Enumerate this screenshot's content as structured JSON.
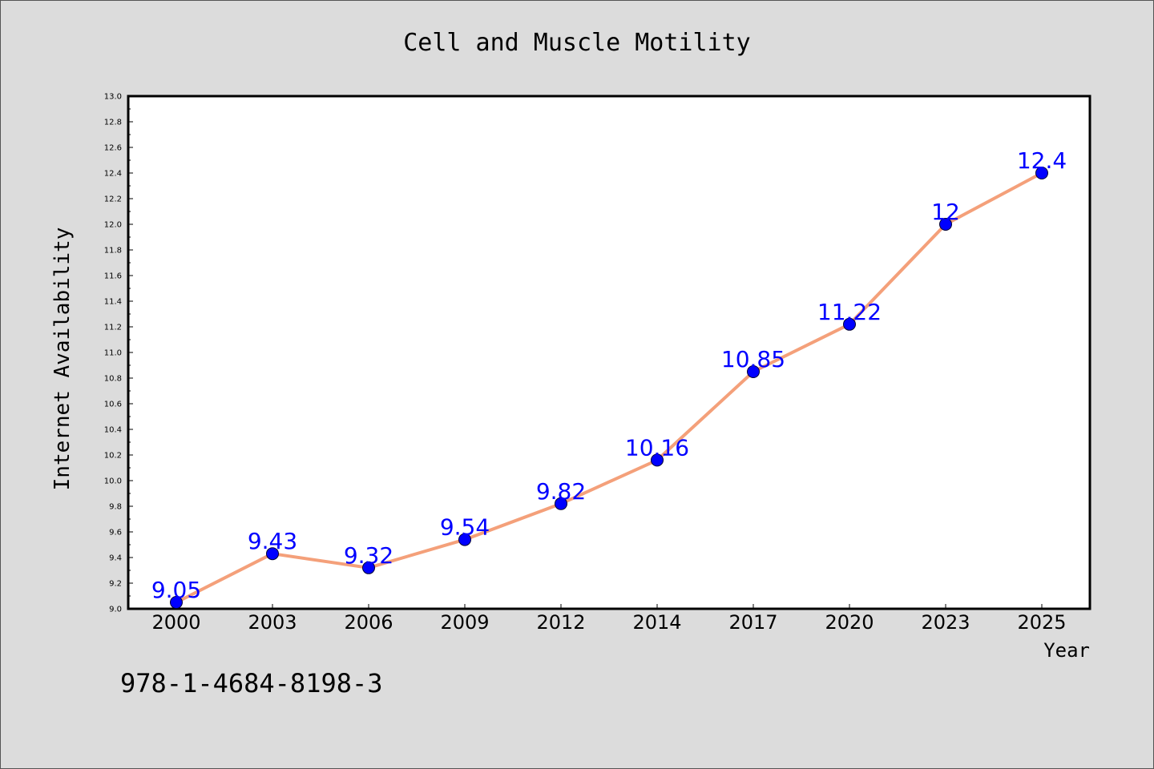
{
  "chart_data": {
    "type": "line",
    "title": "Cell and Muscle Motility",
    "xlabel": "Year",
    "ylabel": "Internet Availability",
    "categories": [
      "2000",
      "2003",
      "2006",
      "2009",
      "2012",
      "2014",
      "2017",
      "2020",
      "2023",
      "2025"
    ],
    "series": [
      {
        "values": [
          9.05,
          9.43,
          9.32,
          9.54,
          9.82,
          10.16,
          10.85,
          11.22,
          12,
          12.4
        ],
        "labels": [
          "9.05",
          "9.43",
          "9.32",
          "9.54",
          "9.82",
          "10.16",
          "10.85",
          "11.22",
          "12",
          "12.4"
        ]
      }
    ],
    "ylim": [
      9.0,
      13.0
    ],
    "yticks": [
      "9.0",
      "9.2",
      "9.4",
      "9.6",
      "9.8",
      "10.0",
      "10.2",
      "10.4",
      "10.6",
      "10.8",
      "11.0",
      "11.2",
      "11.4",
      "11.6",
      "11.8",
      "12.0",
      "12.2",
      "12.4",
      "12.6",
      "12.8",
      "13.0"
    ],
    "grid": false,
    "line_color": "#f4a07a",
    "marker_color": "#0000ff",
    "label_color": "#0000ff"
  },
  "footer_text": "978-1-4684-8198-3"
}
